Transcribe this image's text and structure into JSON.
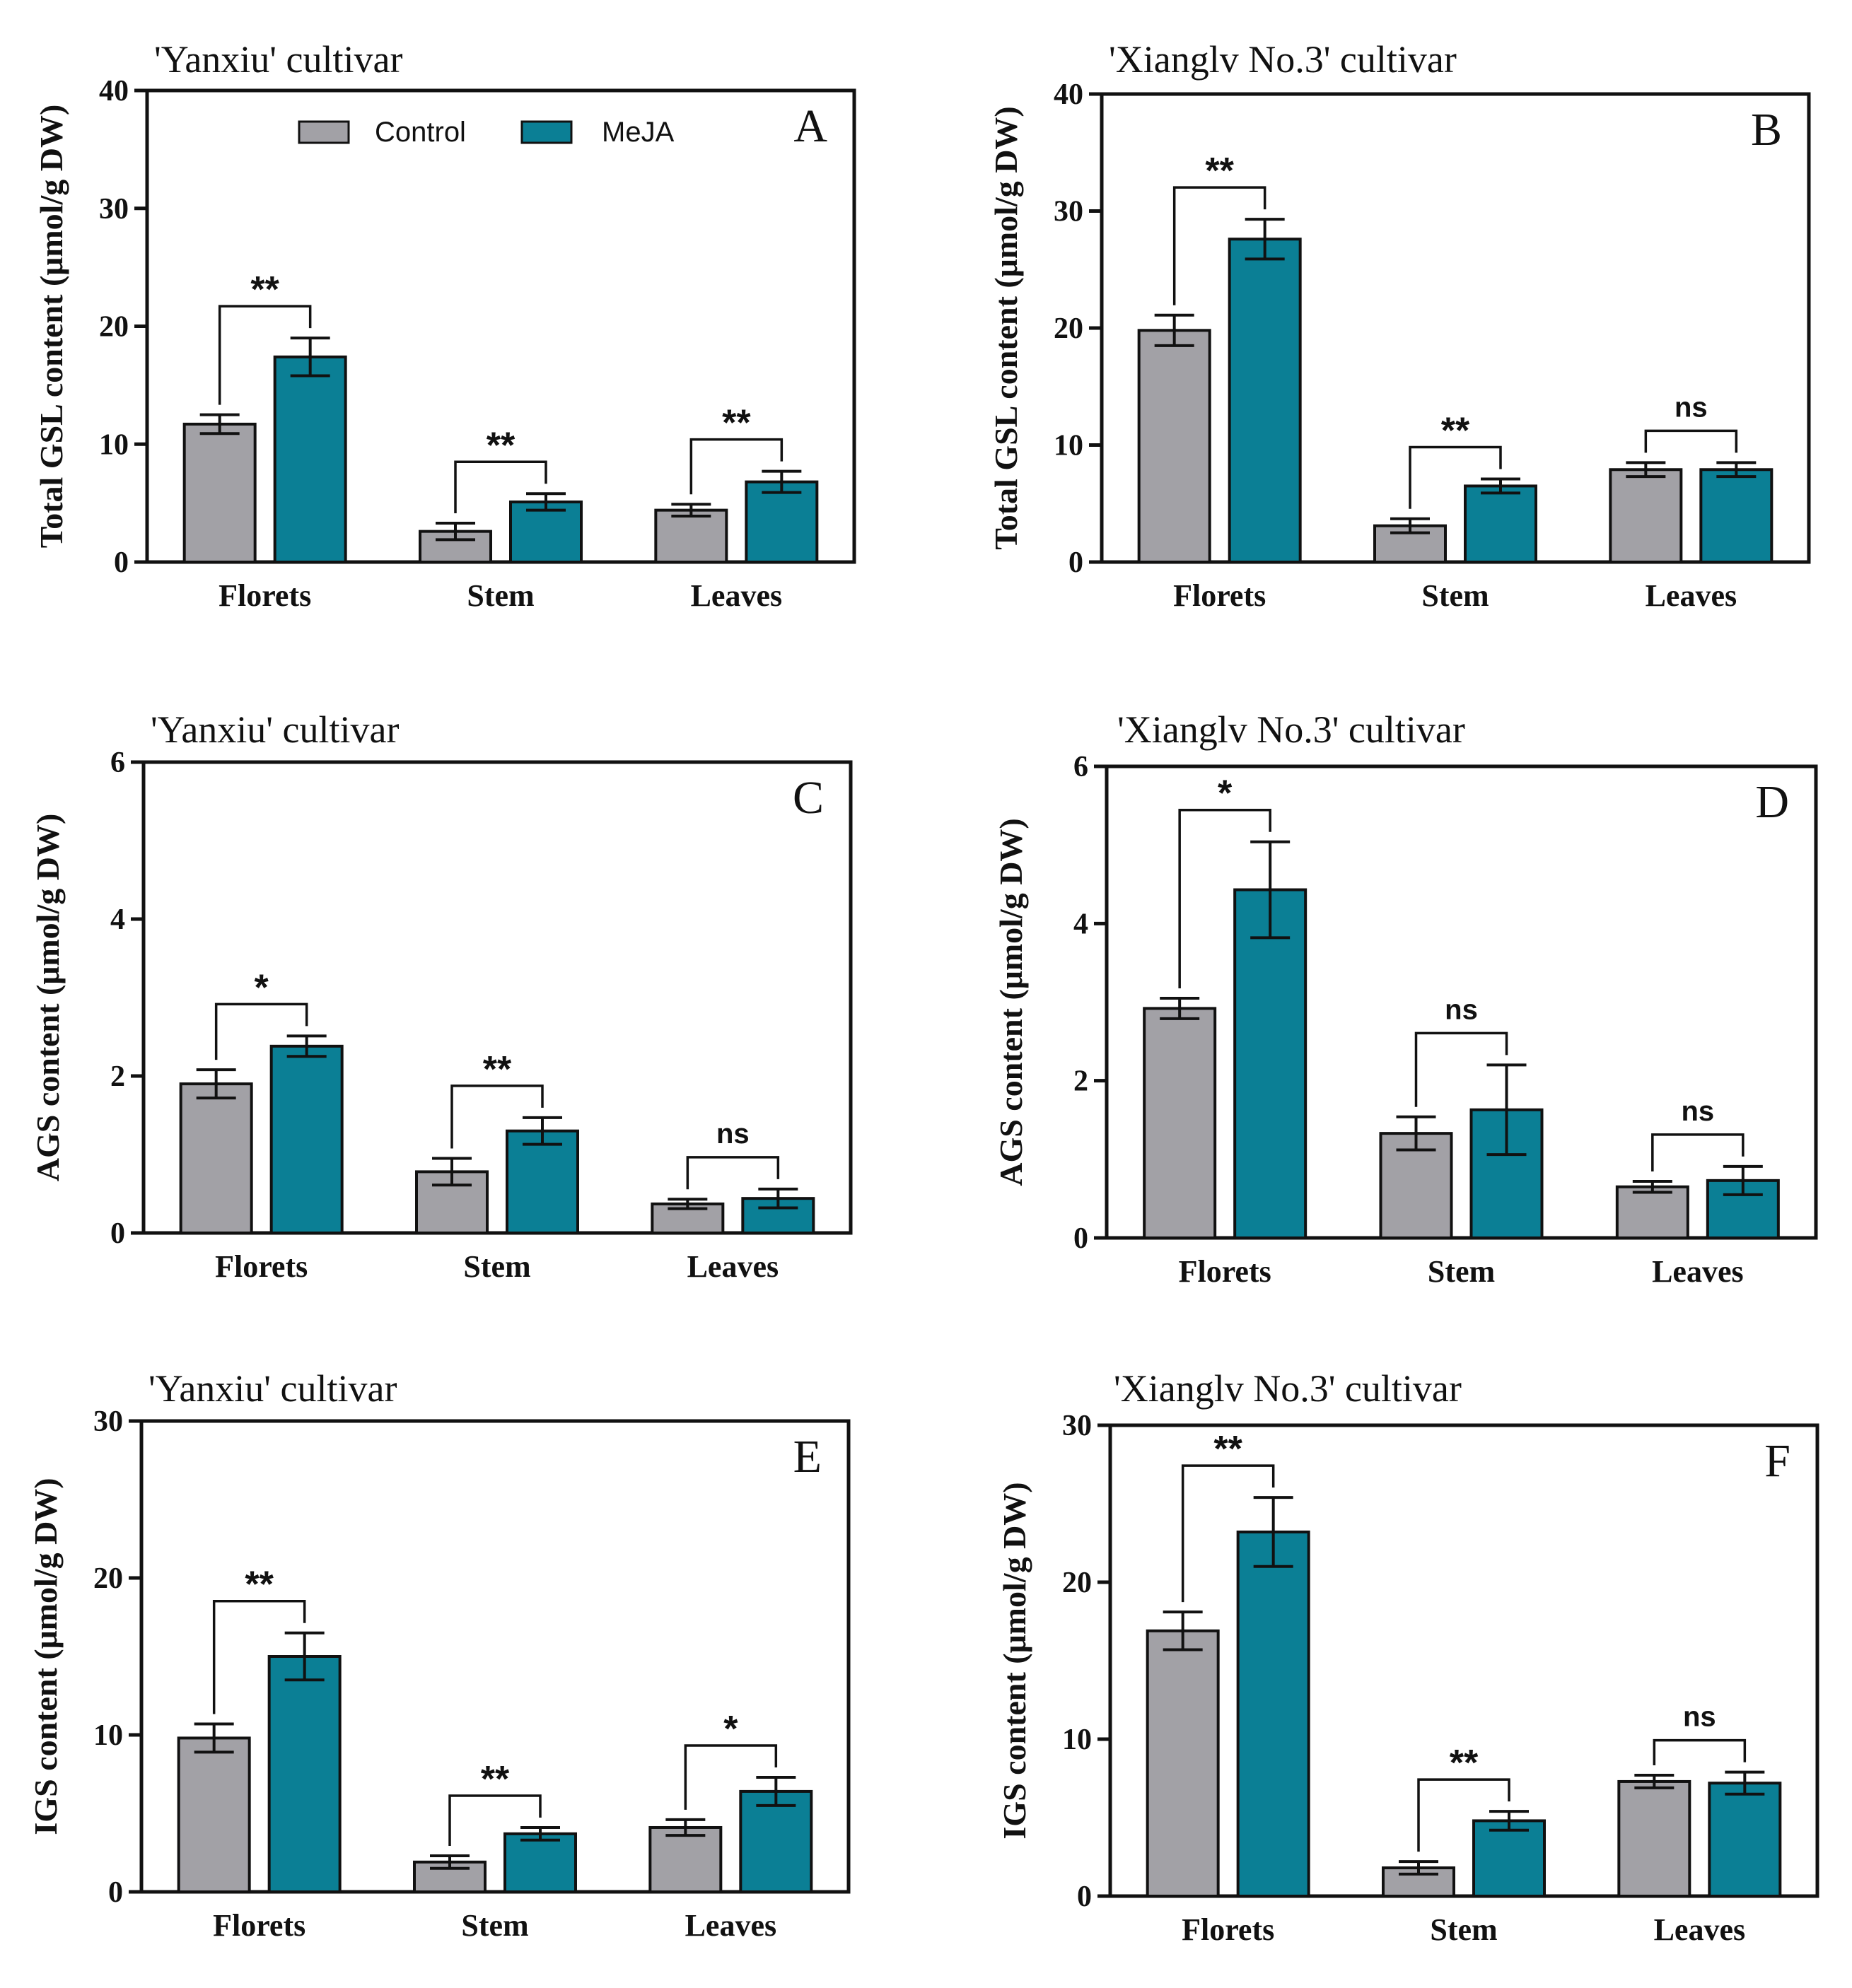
{
  "colors": {
    "control": "#a2a1a6",
    "meja": "#0b7f95",
    "axis": "#111111"
  },
  "legend": {
    "control": "Control",
    "meja": "MeJA"
  },
  "chart_data": [
    {
      "id": "A",
      "type": "bar",
      "letter": "A",
      "title": "'Yanxiu' cultivar",
      "ylabel": "Total GSL content  (μmol/g DW)",
      "categories": [
        "Florets",
        "Stem",
        "Leaves"
      ],
      "ylim": [
        0,
        40
      ],
      "yticks": [
        "0",
        "10",
        "20",
        "30",
        "40"
      ],
      "series": [
        {
          "name": "Control",
          "values": [
            11.7,
            2.6,
            4.4
          ],
          "errors": [
            0.8,
            0.7,
            0.5
          ]
        },
        {
          "name": "MeJA",
          "values": [
            17.4,
            5.1,
            6.8
          ],
          "errors": [
            1.6,
            0.7,
            0.9
          ]
        }
      ],
      "significance": [
        "**",
        "**",
        "**"
      ],
      "show_legend": true
    },
    {
      "id": "B",
      "type": "bar",
      "letter": "B",
      "title": "'Xianglv No.3' cultivar",
      "ylabel": "Total GSL content  (μmol/g DW)",
      "categories": [
        "Florets",
        "Stem",
        "Leaves"
      ],
      "ylim": [
        0,
        40
      ],
      "yticks": [
        "0",
        "10",
        "20",
        "30",
        "40"
      ],
      "series": [
        {
          "name": "Control",
          "values": [
            19.8,
            3.1,
            7.9
          ],
          "errors": [
            1.3,
            0.6,
            0.6
          ]
        },
        {
          "name": "MeJA",
          "values": [
            27.6,
            6.5,
            7.9
          ],
          "errors": [
            1.7,
            0.6,
            0.6
          ]
        }
      ],
      "significance": [
        "**",
        "**",
        "ns"
      ],
      "show_legend": false
    },
    {
      "id": "C",
      "type": "bar",
      "letter": "C",
      "title": "'Yanxiu' cultivar",
      "ylabel": "AGS content  (μmol/g DW)",
      "categories": [
        "Florets",
        "Stem",
        "Leaves"
      ],
      "ylim": [
        0,
        6
      ],
      "yticks": [
        "0",
        "2",
        "4",
        "6"
      ],
      "series": [
        {
          "name": "Control",
          "values": [
            1.9,
            0.78,
            0.37
          ],
          "errors": [
            0.18,
            0.17,
            0.06
          ]
        },
        {
          "name": "MeJA",
          "values": [
            2.38,
            1.3,
            0.44
          ],
          "errors": [
            0.13,
            0.17,
            0.12
          ]
        }
      ],
      "significance": [
        "*",
        "**",
        "ns"
      ],
      "show_legend": false
    },
    {
      "id": "D",
      "type": "bar",
      "letter": "D",
      "title": "'Xianglv No.3' cultivar",
      "ylabel": "AGS content  (μmol/g DW)",
      "categories": [
        "Florets",
        "Stem",
        "Leaves"
      ],
      "ylim": [
        0,
        6
      ],
      "yticks": [
        "0",
        "2",
        "4",
        "6"
      ],
      "series": [
        {
          "name": "Control",
          "values": [
            2.92,
            1.33,
            0.65
          ],
          "errors": [
            0.13,
            0.21,
            0.07
          ]
        },
        {
          "name": "MeJA",
          "values": [
            4.43,
            1.63,
            0.73
          ],
          "errors": [
            0.61,
            0.57,
            0.18
          ]
        }
      ],
      "significance": [
        "*",
        "ns",
        "ns"
      ],
      "show_legend": false
    },
    {
      "id": "E",
      "type": "bar",
      "letter": "E",
      "title": "'Yanxiu' cultivar",
      "ylabel": "IGS content  (μmol/g DW)",
      "categories": [
        "Florets",
        "Stem",
        "Leaves"
      ],
      "ylim": [
        0,
        30
      ],
      "yticks": [
        "0",
        "10",
        "20",
        "30"
      ],
      "series": [
        {
          "name": "Control",
          "values": [
            9.8,
            1.9,
            4.1
          ],
          "errors": [
            0.9,
            0.4,
            0.5
          ]
        },
        {
          "name": "MeJA",
          "values": [
            15.0,
            3.7,
            6.4
          ],
          "errors": [
            1.5,
            0.4,
            0.9
          ]
        }
      ],
      "significance": [
        "**",
        "**",
        "*"
      ],
      "show_legend": false
    },
    {
      "id": "F",
      "type": "bar",
      "letter": "F",
      "title": "'Xianglv No.3' cultivar",
      "ylabel": "IGS content  (μmol/g DW)",
      "categories": [
        "Florets",
        "Stem",
        "Leaves"
      ],
      "ylim": [
        0,
        30
      ],
      "yticks": [
        "0",
        "10",
        "20",
        "30"
      ],
      "series": [
        {
          "name": "Control",
          "values": [
            16.9,
            1.8,
            7.3
          ],
          "errors": [
            1.2,
            0.4,
            0.4
          ]
        },
        {
          "name": "MeJA",
          "values": [
            23.2,
            4.8,
            7.2
          ],
          "errors": [
            2.2,
            0.6,
            0.7
          ]
        }
      ],
      "significance": [
        "**",
        "**",
        "ns"
      ],
      "show_legend": false
    }
  ]
}
